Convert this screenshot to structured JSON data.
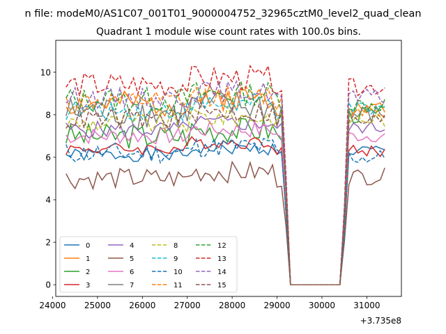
{
  "figure": {
    "suptitle": "n file: modeM0/AS1C07_001T01_9000004752_32965cztM0_level2_quad_clean",
    "title": "Quadrant 1 module wise count rates with 100.0s bins."
  },
  "chart_data": {
    "type": "line",
    "title": "Quadrant 1 module wise count rates with 100.0s bins.",
    "xlabel": "",
    "ylabel": "",
    "x_offset_label": "+3.735e8",
    "xlim": [
      24070,
      31770
    ],
    "ylim": [
      -0.55,
      11.5
    ],
    "x_ticks": [
      24000,
      25000,
      26000,
      27000,
      28000,
      29000,
      30000,
      31000
    ],
    "x_tick_labels": [
      "24000",
      "25000",
      "26000",
      "27000",
      "28000",
      "29000",
      "30000",
      "31000"
    ],
    "y_ticks": [
      0,
      2,
      4,
      6,
      8,
      10
    ],
    "y_tick_labels": [
      "0",
      "2",
      "4",
      "6",
      "8",
      "10"
    ],
    "grid": false,
    "legend_placement": "lower left",
    "legend_columns": 4,
    "x": {
      "segment1": {
        "start": 24300,
        "end": 29100,
        "step": 100
      },
      "drop_points": [
        [
          29200,
          "drop"
        ],
        [
          29300,
          0
        ],
        [
          29400,
          0
        ]
      ],
      "gap_zero": {
        "start": 29300,
        "end": 30400,
        "step": 100
      },
      "rise_points": [
        30500
      ],
      "segment2": {
        "start": 30600,
        "end": 31400,
        "step": 100
      }
    },
    "series": [
      {
        "name": "0",
        "color": "#1f77b4",
        "dash": "solid",
        "base1": 6.1,
        "amp1": 0.3,
        "base2": 6.3,
        "amp2": 0.3,
        "seed": 1
      },
      {
        "name": "1",
        "color": "#ff7f0e",
        "dash": "solid",
        "base1": 8.5,
        "amp1": 0.6,
        "base2": 8.3,
        "amp2": 0.4,
        "seed": 2
      },
      {
        "name": "2",
        "color": "#2ca02c",
        "dash": "solid",
        "base1": 7.0,
        "amp1": 0.6,
        "base2": 8.0,
        "amp2": 0.4,
        "seed": 3
      },
      {
        "name": "3",
        "color": "#d62728",
        "dash": "solid",
        "base1": 6.4,
        "amp1": 0.3,
        "base2": 6.3,
        "amp2": 0.3,
        "seed": 4
      },
      {
        "name": "4",
        "color": "#9467bd",
        "dash": "solid",
        "base1": 7.3,
        "amp1": 0.4,
        "base2": 7.4,
        "amp2": 0.3,
        "seed": 5
      },
      {
        "name": "5",
        "color": "#8c564b",
        "dash": "solid",
        "base1": 5.0,
        "amp1": 0.5,
        "base2": 5.1,
        "amp2": 0.4,
        "seed": 6
      },
      {
        "name": "6",
        "color": "#e377c2",
        "dash": "solid",
        "base1": 7.0,
        "amp1": 0.4,
        "base2": 7.0,
        "amp2": 0.3,
        "seed": 7
      },
      {
        "name": "7",
        "color": "#7f7f7f",
        "dash": "solid",
        "base1": 8.1,
        "amp1": 0.8,
        "base2": 8.0,
        "amp2": 0.5,
        "seed": 8
      },
      {
        "name": "8",
        "color": "#bcbd22",
        "dash": "dashed",
        "base1": 7.6,
        "amp1": 0.5,
        "base2": 7.8,
        "amp2": 0.4,
        "seed": 9
      },
      {
        "name": "9",
        "color": "#17becf",
        "dash": "dashed",
        "base1": 8.2,
        "amp1": 0.5,
        "base2": 8.2,
        "amp2": 0.4,
        "seed": 10
      },
      {
        "name": "10",
        "color": "#1f77b4",
        "dash": "dashed",
        "base1": 6.2,
        "amp1": 0.5,
        "base2": 6.0,
        "amp2": 0.4,
        "seed": 11
      },
      {
        "name": "11",
        "color": "#ff7f0e",
        "dash": "dashed",
        "base1": 8.6,
        "amp1": 0.5,
        "base2": 8.3,
        "amp2": 0.4,
        "seed": 12
      },
      {
        "name": "12",
        "color": "#2ca02c",
        "dash": "dashed",
        "base1": 8.7,
        "amp1": 0.6,
        "base2": 8.5,
        "amp2": 0.4,
        "seed": 13
      },
      {
        "name": "13",
        "color": "#d62728",
        "dash": "dashed",
        "base1": 9.4,
        "amp1": 0.6,
        "base2": 9.3,
        "amp2": 0.4,
        "seed": 14
      },
      {
        "name": "14",
        "color": "#9467bd",
        "dash": "dashed",
        "base1": 8.8,
        "amp1": 0.5,
        "base2": 8.8,
        "amp2": 0.4,
        "seed": 15
      },
      {
        "name": "15",
        "color": "#8c564b",
        "dash": "dashed",
        "base1": 7.8,
        "amp1": 0.5,
        "base2": 7.7,
        "amp2": 0.4,
        "seed": 16
      }
    ]
  }
}
